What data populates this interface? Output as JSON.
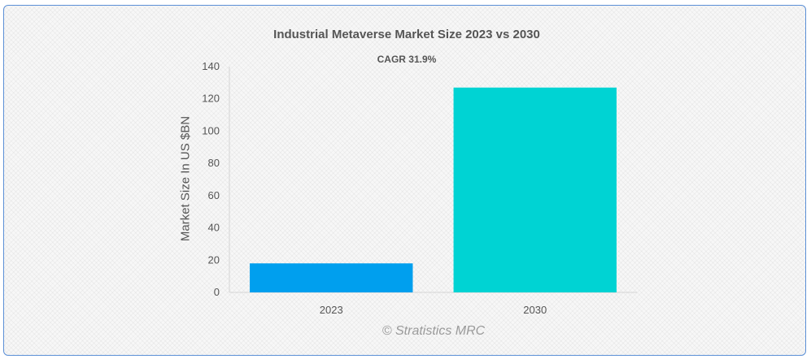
{
  "chart_data": {
    "type": "bar",
    "title": "Industrial Metaverse Market Size 2023 vs 2030",
    "subtitle": "CAGR 31.9%",
    "xlabel": "",
    "ylabel": "Market Size In US $BN",
    "categories": [
      "2023",
      "2030"
    ],
    "values": [
      18,
      127
    ],
    "ylim": [
      0,
      140
    ],
    "yticks": [
      0,
      20,
      40,
      60,
      80,
      100,
      120,
      140
    ],
    "colors": [
      "#009fee",
      "#00d3d3"
    ],
    "grid": false,
    "legend": "none"
  },
  "watermark": "© Stratistics MRC"
}
